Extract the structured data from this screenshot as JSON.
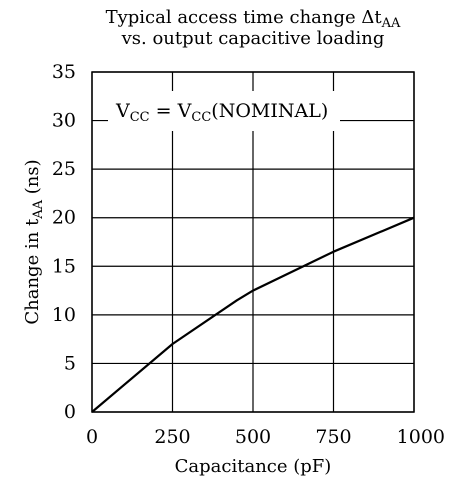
{
  "chart_data": {
    "type": "line",
    "title": {
      "line1": "Typical access time change Δt",
      "line1_sub": "AA",
      "line2": "vs. output capacitive loading"
    },
    "xlabel": "Capacitance (pF)",
    "ylabel": {
      "prefix": "Change in t",
      "sub": "AA",
      "suffix": " (ns)"
    },
    "xlim": [
      0,
      1000
    ],
    "ylim": [
      0,
      35
    ],
    "xticks": [
      0,
      250,
      500,
      750,
      1000
    ],
    "xtick_labels": [
      "0",
      "250",
      "500",
      "750",
      "1000"
    ],
    "yticks": [
      0,
      5,
      10,
      15,
      20,
      25,
      30,
      35
    ],
    "ytick_labels": [
      "0",
      "5",
      "10",
      "15",
      "20",
      "25",
      "30",
      "35"
    ],
    "grid": true,
    "annotation": {
      "p1": "V",
      "p1_sub": "CC",
      "p2": " = V",
      "p2_sub": "CC",
      "p3": "(NOMINAL)"
    },
    "series": [
      {
        "x": [
          0,
          250,
          450,
          500,
          750,
          1000
        ],
        "y": [
          0,
          7,
          11.5,
          12.5,
          16.5,
          20
        ]
      }
    ],
    "colors": {
      "line": "#000000",
      "grid": "#000000"
    }
  }
}
